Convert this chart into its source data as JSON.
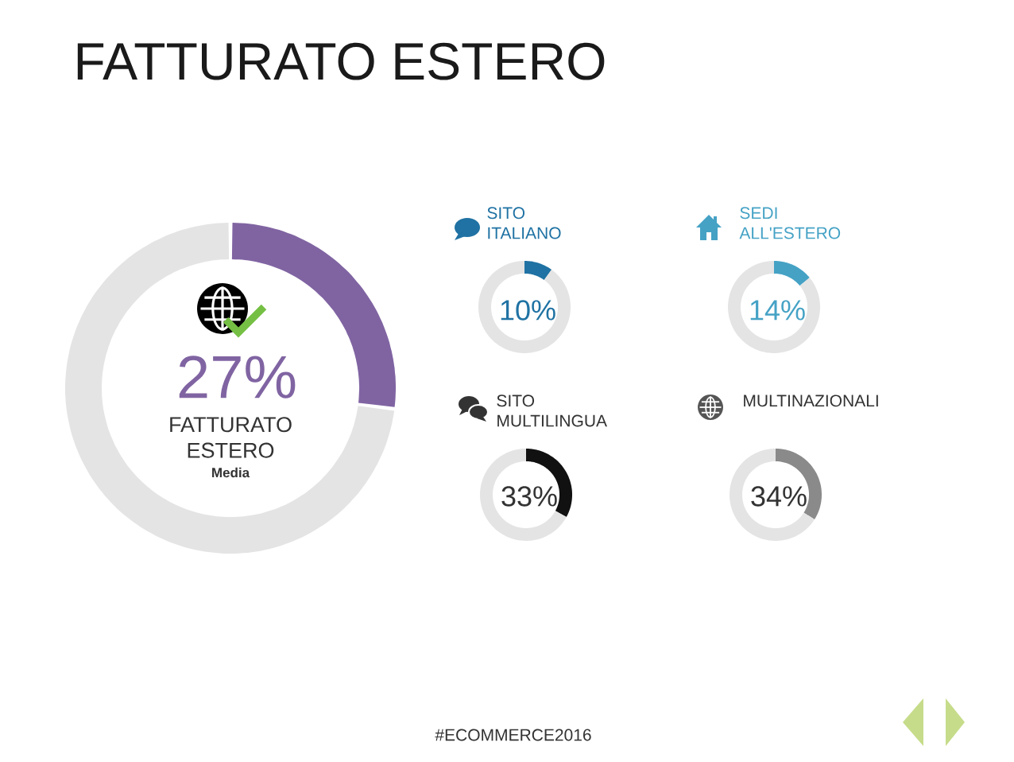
{
  "chart_data": [
    {
      "type": "donut",
      "title": "FATTURATO ESTERO",
      "categories": [
        null,
        null
      ],
      "values": [
        27,
        73
      ],
      "colors": [
        "#8064a2",
        "#e4e4e4"
      ],
      "annotations": [
        "27%",
        "FATTURATO ESTERO",
        "Media"
      ]
    },
    {
      "type": "donut",
      "title": "SITO ITALIANO",
      "categories": [
        null,
        null
      ],
      "values": [
        10,
        90
      ],
      "colors": [
        "#1f72a3",
        "#e4e4e4"
      ],
      "annotations": [
        "10%"
      ]
    },
    {
      "type": "donut",
      "title": "SEDI ALL'ESTERO",
      "categories": [
        null,
        null
      ],
      "values": [
        14,
        86
      ],
      "colors": [
        "#45a2c5",
        "#e4e4e4"
      ],
      "annotations": [
        "14%"
      ]
    },
    {
      "type": "donut",
      "title": "SITO MULTILINGUA",
      "categories": [
        null,
        null
      ],
      "values": [
        33,
        67
      ],
      "colors": [
        "#111111",
        "#e4e4e4"
      ],
      "annotations": [
        "33%"
      ]
    },
    {
      "type": "donut",
      "title": "MULTINAZIONALI",
      "categories": [
        null,
        null
      ],
      "values": [
        34,
        66
      ],
      "colors": [
        "#8a8a8a",
        "#e4e4e4"
      ],
      "annotations": [
        "34%",
        "#ECOMMERCE2016"
      ]
    }
  ]
}
